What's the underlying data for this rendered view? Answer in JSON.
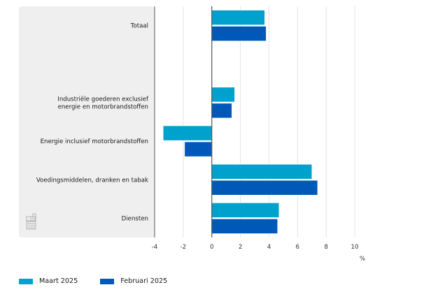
{
  "chart_data": {
    "type": "bar",
    "orientation": "horizontal",
    "title": "",
    "xlabel": "%",
    "ylabel": "",
    "categories": [
      [
        "Totaal"
      ],
      [],
      [
        "Industriële goederen exclusief",
        "energie en motorbrandstoffen"
      ],
      [
        "Energie inclusief motorbrandstoffen"
      ],
      [
        "Voedingsmiddelen, dranken en tabak"
      ],
      [
        "Diensten"
      ]
    ],
    "category_names": [
      "Totaal",
      "",
      "Industriële goederen exclusief energie en motorbrandstoffen",
      "Energie inclusief motorbrandstoffen",
      "Voedingsmiddelen, dranken en tabak",
      "Diensten"
    ],
    "series": [
      {
        "name": "Maart 2025",
        "color": "#00a1cd",
        "values": [
          3.7,
          null,
          1.6,
          -3.4,
          7.0,
          4.7
        ]
      },
      {
        "name": "Februari 2025",
        "color": "#0058b8",
        "values": [
          3.8,
          null,
          1.4,
          -1.9,
          7.4,
          4.6
        ]
      }
    ],
    "xlim": [
      -4,
      10
    ],
    "xticks": [
      -4,
      -2,
      0,
      2,
      4,
      6,
      8,
      10
    ],
    "xtick_labels": [
      "-4",
      "-2",
      "0",
      "2",
      "4",
      "6",
      "8",
      "10"
    ],
    "grid": true,
    "legend_position": "bottom-left"
  },
  "legend": {
    "items": [
      {
        "label": "Maart 2025",
        "color": "#00a1cd"
      },
      {
        "label": "Februari 2025",
        "color": "#0058b8"
      }
    ]
  },
  "logo": {
    "icon": "cbs-logo-icon"
  }
}
